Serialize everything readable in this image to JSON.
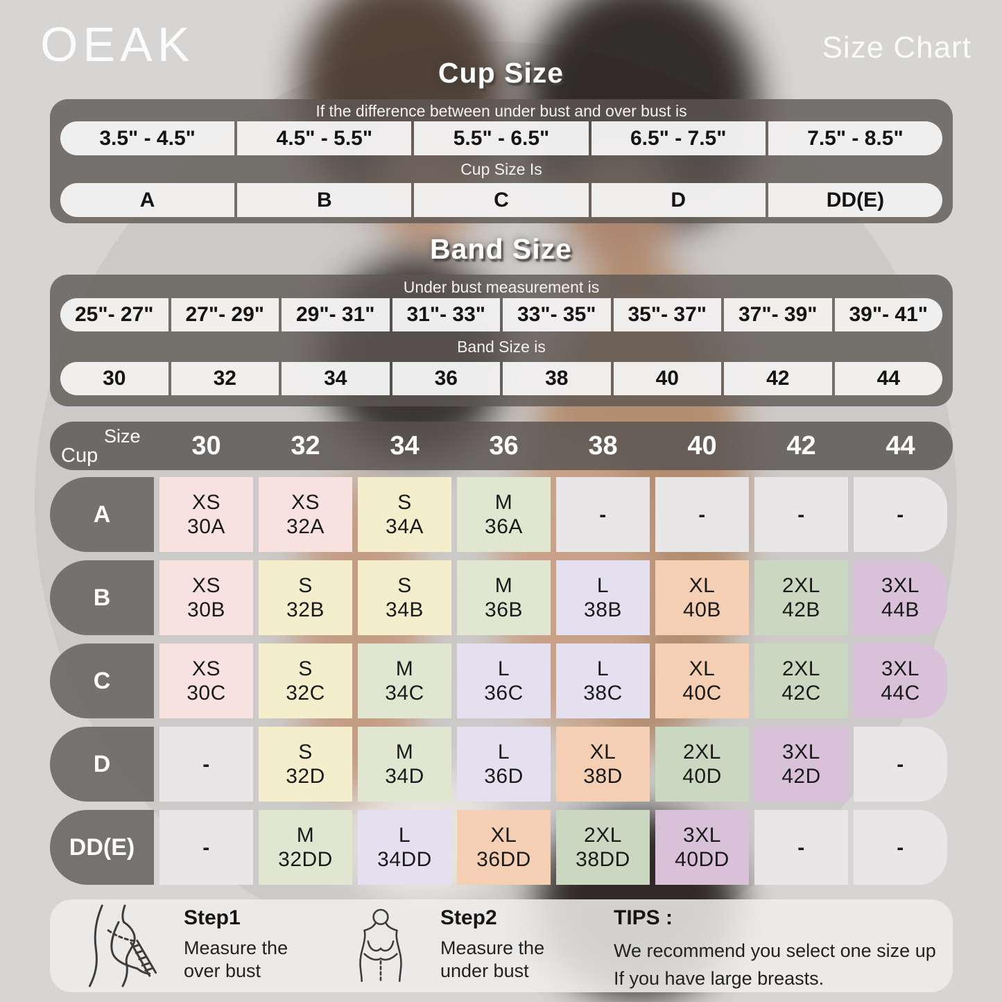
{
  "header": {
    "brand": "OEAK",
    "page_title": "Size Chart"
  },
  "cup_section": {
    "heading": "Cup Size",
    "condition_text": "If the difference between under bust and over bust is",
    "ranges": [
      "3.5\" - 4.5\"",
      "4.5\" - 5.5\"",
      "5.5\" - 6.5\"",
      "6.5\" - 7.5\"",
      "7.5\" - 8.5\""
    ],
    "result_text": "Cup Size Is",
    "cups": [
      "A",
      "B",
      "C",
      "D",
      "DD(E)"
    ]
  },
  "band_section": {
    "heading": "Band Size",
    "condition_text": "Under bust measurement is",
    "ranges": [
      "25\"- 27\"",
      "27\"- 29\"",
      "29\"- 31\"",
      "31\"- 33\"",
      "33\"- 35\"",
      "35\"- 37\"",
      "37\"- 39\"",
      "39\"- 41\""
    ],
    "result_text": "Band Size is",
    "sizes": [
      "30",
      "32",
      "34",
      "36",
      "38",
      "40",
      "42",
      "44"
    ]
  },
  "size_matrix": {
    "corner_top": "Size",
    "corner_bottom": "Cup",
    "columns": [
      "30",
      "32",
      "34",
      "36",
      "38",
      "40",
      "42",
      "44"
    ],
    "palette": {
      "pink": "#f8e2e0",
      "cream": "#f5eecd",
      "sage": "#e1e6d0",
      "lavender": "#e4e0f0",
      "peach": "#f5cfb3",
      "green": "#cad8c2",
      "mauve": "#d9c2d9",
      "gray": "#e9e6e7"
    },
    "rows": [
      {
        "cup": "A",
        "cells": [
          {
            "size": "XS",
            "code": "30A",
            "color": "pink"
          },
          {
            "size": "XS",
            "code": "32A",
            "color": "pink"
          },
          {
            "size": "S",
            "code": "34A",
            "color": "cream"
          },
          {
            "size": "M",
            "code": "36A",
            "color": "sage"
          },
          {
            "size": "-",
            "code": "",
            "color": "gray"
          },
          {
            "size": "-",
            "code": "",
            "color": "gray"
          },
          {
            "size": "-",
            "code": "",
            "color": "gray"
          },
          {
            "size": "-",
            "code": "",
            "color": "gray"
          }
        ]
      },
      {
        "cup": "B",
        "cells": [
          {
            "size": "XS",
            "code": "30B",
            "color": "pink"
          },
          {
            "size": "S",
            "code": "32B",
            "color": "cream"
          },
          {
            "size": "S",
            "code": "34B",
            "color": "cream"
          },
          {
            "size": "M",
            "code": "36B",
            "color": "sage"
          },
          {
            "size": "L",
            "code": "38B",
            "color": "lavender"
          },
          {
            "size": "XL",
            "code": "40B",
            "color": "peach"
          },
          {
            "size": "2XL",
            "code": "42B",
            "color": "green"
          },
          {
            "size": "3XL",
            "code": "44B",
            "color": "mauve"
          }
        ]
      },
      {
        "cup": "C",
        "cells": [
          {
            "size": "XS",
            "code": "30C",
            "color": "pink"
          },
          {
            "size": "S",
            "code": "32C",
            "color": "cream"
          },
          {
            "size": "M",
            "code": "34C",
            "color": "sage"
          },
          {
            "size": "L",
            "code": "36C",
            "color": "lavender"
          },
          {
            "size": "L",
            "code": "38C",
            "color": "lavender"
          },
          {
            "size": "XL",
            "code": "40C",
            "color": "peach"
          },
          {
            "size": "2XL",
            "code": "42C",
            "color": "green"
          },
          {
            "size": "3XL",
            "code": "44C",
            "color": "mauve"
          }
        ]
      },
      {
        "cup": "D",
        "cells": [
          {
            "size": "-",
            "code": "",
            "color": "gray"
          },
          {
            "size": "S",
            "code": "32D",
            "color": "cream"
          },
          {
            "size": "M",
            "code": "34D",
            "color": "sage"
          },
          {
            "size": "L",
            "code": "36D",
            "color": "lavender"
          },
          {
            "size": "XL",
            "code": "38D",
            "color": "peach"
          },
          {
            "size": "2XL",
            "code": "40D",
            "color": "green"
          },
          {
            "size": "3XL",
            "code": "42D",
            "color": "mauve"
          },
          {
            "size": "-",
            "code": "",
            "color": "gray"
          }
        ]
      },
      {
        "cup": "DD(E)",
        "cells": [
          {
            "size": "-",
            "code": "",
            "color": "gray"
          },
          {
            "size": "M",
            "code": "32DD",
            "color": "sage"
          },
          {
            "size": "L",
            "code": "34DD",
            "color": "lavender"
          },
          {
            "size": "XL",
            "code": "36DD",
            "color": "peach"
          },
          {
            "size": "2XL",
            "code": "38DD",
            "color": "green"
          },
          {
            "size": "3XL",
            "code": "40DD",
            "color": "mauve"
          },
          {
            "size": "-",
            "code": "",
            "color": "gray"
          },
          {
            "size": "-",
            "code": "",
            "color": "gray"
          }
        ]
      }
    ]
  },
  "footer": {
    "steps": [
      {
        "label": "Step1",
        "line1": "Measure the",
        "line2": "over bust"
      },
      {
        "label": "Step2",
        "line1": "Measure the",
        "line2": "under bust"
      }
    ],
    "tips_label": "TIPS :",
    "tips_line1": "We recommend you select one size up",
    "tips_line2": "If you have large breasts."
  },
  "chart_data": [
    {
      "type": "table",
      "title": "Cup Size",
      "note": "If the difference between under bust and over bust is",
      "categories": [
        "3.5\" - 4.5\"",
        "4.5\" - 5.5\"",
        "5.5\" - 6.5\"",
        "6.5\" - 7.5\"",
        "7.5\" - 8.5\""
      ],
      "values": [
        "A",
        "B",
        "C",
        "D",
        "DD(E)"
      ]
    },
    {
      "type": "table",
      "title": "Band Size",
      "note": "Under bust measurement is",
      "categories": [
        "25\"- 27\"",
        "27\"- 29\"",
        "29\"- 31\"",
        "31\"- 33\"",
        "33\"- 35\"",
        "35\"- 37\"",
        "37\"- 39\"",
        "39\"- 41\""
      ],
      "values": [
        "30",
        "32",
        "34",
        "36",
        "38",
        "40",
        "42",
        "44"
      ]
    },
    {
      "type": "table",
      "title": "Size matrix (Cup x Band)",
      "columns": [
        "30",
        "32",
        "34",
        "36",
        "38",
        "40",
        "42",
        "44"
      ],
      "rows": [
        {
          "cup": "A",
          "values": [
            "XS 30A",
            "XS 32A",
            "S 34A",
            "M 36A",
            "-",
            "-",
            "-",
            "-"
          ]
        },
        {
          "cup": "B",
          "values": [
            "XS 30B",
            "S 32B",
            "S 34B",
            "M 36B",
            "L 38B",
            "XL 40B",
            "2XL 42B",
            "3XL 44B"
          ]
        },
        {
          "cup": "C",
          "values": [
            "XS 30C",
            "S 32C",
            "M 34C",
            "L 36C",
            "L 38C",
            "XL 40C",
            "2XL 42C",
            "3XL 44C"
          ]
        },
        {
          "cup": "D",
          "values": [
            "-",
            "S 32D",
            "M 34D",
            "L 36D",
            "XL 38D",
            "2XL 40D",
            "3XL 42D",
            "-"
          ]
        },
        {
          "cup": "DD(E)",
          "values": [
            "-",
            "M 32DD",
            "L 34DD",
            "XL 36DD",
            "2XL 38DD",
            "3XL 40DD",
            "-",
            "-"
          ]
        }
      ]
    }
  ]
}
